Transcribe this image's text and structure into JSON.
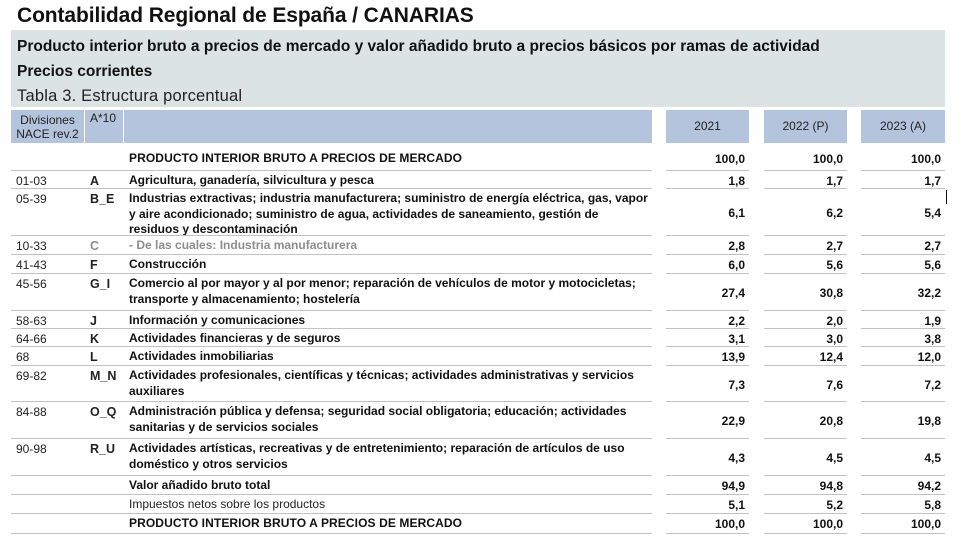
{
  "header": {
    "title": "Contabilidad Regional de España / CANARIAS",
    "subtitle_line1": "Producto interior bruto a precios de mercado y valor añadido bruto a precios básicos por ramas de actividad",
    "subtitle_line2": "Precios corrientes",
    "table_title": "Tabla 3.  Estructura porcentual"
  },
  "columns": {
    "divisiones_line1": "Divisiones",
    "divisiones_line2": "NACE rev.2",
    "a10": "A*10",
    "description": "",
    "years": [
      "2021",
      "2022 (P)",
      "2023 (A)"
    ]
  },
  "colors": {
    "header_band": "#dce3e4",
    "column_header": "#b5c4dd",
    "row_rule": "#bfc3c7",
    "muted_text": "#8d8d8d"
  },
  "rows": [
    {
      "code": "",
      "a10": "",
      "desc": "PRODUCTO INTERIOR BRUTO A PRECIOS DE MERCADO",
      "values": [
        "100,0",
        "100,0",
        "100,0"
      ],
      "style": "caps"
    },
    {
      "code": "01-03",
      "a10": "A",
      "desc": "Agricultura, ganadería, silvicultura y pesca",
      "values": [
        "1,8",
        "1,7",
        "1,7"
      ],
      "style": "bold"
    },
    {
      "code": "05-39",
      "a10": "B_E",
      "desc": "Industrias extractivas; industria manufacturera; suministro de energía eléctrica, gas, vapor y aire acondicionado; suministro de agua, actividades de saneamiento, gestión de residuos y descontaminación",
      "values": [
        "6,1",
        "6,2",
        "5,4"
      ],
      "style": "bold"
    },
    {
      "code": "10-33",
      "a10": "C",
      "desc": "- De las cuales: Industria manufacturera",
      "values": [
        "2,8",
        "2,7",
        "2,7"
      ],
      "style": "gray"
    },
    {
      "code": "41-43",
      "a10": "F",
      "desc": "Construcción",
      "values": [
        "6,0",
        "5,6",
        "5,6"
      ],
      "style": "bold"
    },
    {
      "code": "45-56",
      "a10": "G_I",
      "desc": "Comercio al por mayor y al por menor; reparación de vehículos de motor y motocicletas; transporte y almacenamiento; hostelería",
      "values": [
        "27,4",
        "30,8",
        "32,2"
      ],
      "style": "bold"
    },
    {
      "code": "58-63",
      "a10": "J",
      "desc": "Información y comunicaciones",
      "values": [
        "2,2",
        "2,0",
        "1,9"
      ],
      "style": "bold"
    },
    {
      "code": "64-66",
      "a10": "K",
      "desc": "Actividades financieras y de seguros",
      "values": [
        "3,1",
        "3,0",
        "3,8"
      ],
      "style": "bold"
    },
    {
      "code": "68",
      "a10": "L",
      "desc": "Actividades inmobiliarias",
      "values": [
        "13,9",
        "12,4",
        "12,0"
      ],
      "style": "bold"
    },
    {
      "code": "69-82",
      "a10": "M_N",
      "desc": "Actividades profesionales, científicas y técnicas; actividades administrativas y servicios auxiliares",
      "values": [
        "7,3",
        "7,6",
        "7,2"
      ],
      "style": "bold"
    },
    {
      "code": "84-88",
      "a10": "O_Q",
      "desc": "Administración pública y defensa; seguridad social obligatoria; educación; actividades sanitarias y de servicios sociales",
      "values": [
        "22,9",
        "20,8",
        "19,8"
      ],
      "style": "bold"
    },
    {
      "code": "90-98",
      "a10": "R_U",
      "desc": "Actividades artísticas, recreativas y de entretenimiento; reparación de artículos de uso doméstico y otros servicios",
      "values": [
        "4,3",
        "4,5",
        "4,5"
      ],
      "style": "bold"
    },
    {
      "code": "",
      "a10": "",
      "desc": "Valor añadido bruto total",
      "values": [
        "94,9",
        "94,8",
        "94,2"
      ],
      "style": "bold"
    },
    {
      "code": "",
      "a10": "",
      "desc": "Impuestos netos sobre los productos",
      "values": [
        "5,1",
        "5,2",
        "5,8"
      ],
      "style": "plain"
    },
    {
      "code": "",
      "a10": "",
      "desc": "PRODUCTO INTERIOR BRUTO A PRECIOS DE MERCADO",
      "values": [
        "100,0",
        "100,0",
        "100,0"
      ],
      "style": "caps"
    }
  ]
}
